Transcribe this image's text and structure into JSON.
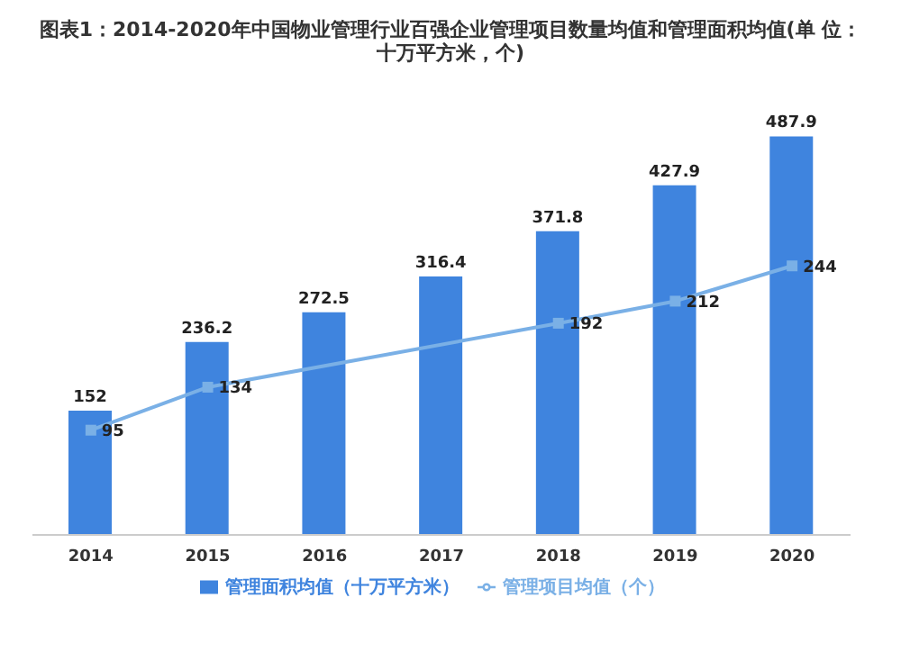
{
  "chart_data": {
    "type": "bar",
    "title": "图表1：2014-2020年中国物业管理行业百强企业管理项目数量均值和管理面积均值(单 位：十万平方米，个)",
    "categories": [
      "2014",
      "2015",
      "2016",
      "2017",
      "2018",
      "2019",
      "2020"
    ],
    "series": [
      {
        "name": "管理面积均值（十万平方米）",
        "color": "#3f84de",
        "values": [
          152,
          236.2,
          272.5,
          316.4,
          371.8,
          427.9,
          487.9
        ]
      },
      {
        "name": "管理项目均值（个）",
        "type": "line",
        "axis": "y2",
        "color": "#7ab0e6",
        "values": [
          95,
          134,
          null,
          null,
          192,
          212,
          244
        ]
      }
    ],
    "data_labels": true,
    "legend": "bottom",
    "tick_labels": "x",
    "grid": false,
    "marker": "square"
  }
}
